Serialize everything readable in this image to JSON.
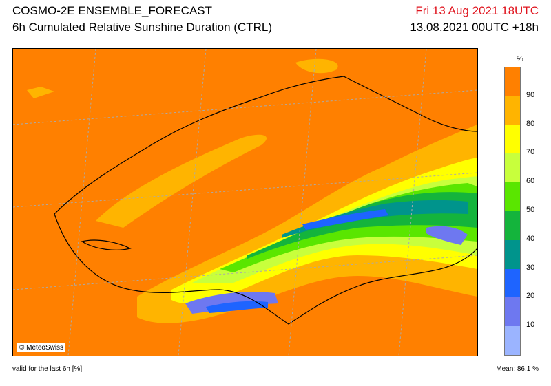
{
  "header": {
    "title": "COSMO-2E ENSEMBLE_FORECAST",
    "subtitle": "6h Cumulated Relative Sunshine Duration (CTRL)",
    "valid_time": "Fri 13 Aug 2021 18UTC",
    "run_info": "13.08.2021 00UTC +18h"
  },
  "map": {
    "credit": "© MeteoSwiss"
  },
  "legend": {
    "unit": "%",
    "bins": [
      {
        "label": "90",
        "color": "#ff8000"
      },
      {
        "label": "80",
        "color": "#ffb400"
      },
      {
        "label": "70",
        "color": "#ffff00"
      },
      {
        "label": "60",
        "color": "#c8ff3c"
      },
      {
        "label": "50",
        "color": "#5ae600"
      },
      {
        "label": "40",
        "color": "#14b43c"
      },
      {
        "label": "30",
        "color": "#00948c"
      },
      {
        "label": "20",
        "color": "#1e64ff"
      },
      {
        "label": "10",
        "color": "#6e78f0"
      },
      {
        "label": "",
        "color": "#9bb4ff"
      }
    ]
  },
  "footer": {
    "validity": "valid for the last 6h [%]",
    "mean": "Mean:  86.1 %"
  }
}
